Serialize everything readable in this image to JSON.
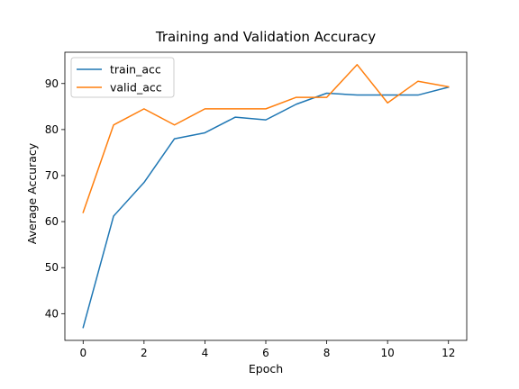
{
  "chart_data": {
    "type": "line",
    "title": "Training and Validation Accuracy",
    "xlabel": "Epoch",
    "ylabel": "Average Accuracy",
    "x": [
      0,
      1,
      2,
      3,
      4,
      5,
      6,
      7,
      8,
      9,
      10,
      11,
      12
    ],
    "xlim": [
      -0.6,
      12.6
    ],
    "ylim": [
      34.2,
      96.8
    ],
    "xticks": [
      0,
      2,
      4,
      6,
      8,
      10,
      12
    ],
    "yticks": [
      40,
      50,
      60,
      70,
      80,
      90
    ],
    "grid": false,
    "legend_position": "top-left",
    "series": [
      {
        "name": "train_acc",
        "color": "#1f77b4",
        "values": [
          37.0,
          61.2,
          68.5,
          78.0,
          79.3,
          82.7,
          82.1,
          85.5,
          87.9,
          87.5,
          87.5,
          87.5,
          89.2
        ]
      },
      {
        "name": "valid_acc",
        "color": "#ff7f0e",
        "values": [
          62.0,
          81.0,
          84.5,
          81.0,
          84.5,
          84.5,
          84.5,
          87.0,
          87.0,
          94.1,
          85.8,
          90.5,
          89.3
        ]
      }
    ]
  }
}
